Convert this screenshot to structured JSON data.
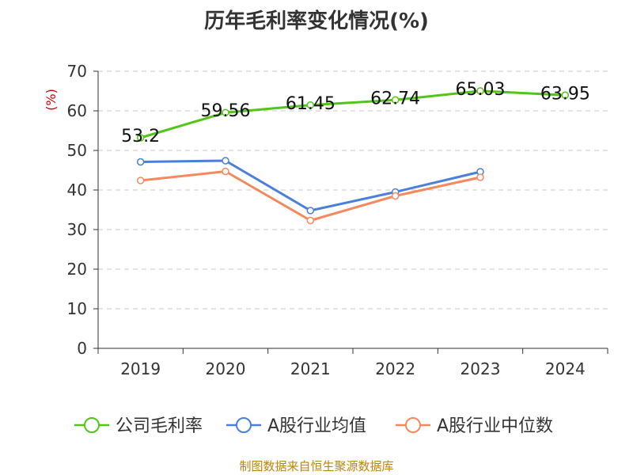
{
  "title": "历年毛利率变化情况(%)",
  "source": "制图数据来自恒生聚源数据库",
  "chart_data": {
    "type": "line",
    "title": "历年毛利率变化情况(%)",
    "ylabel": "(%)",
    "xlabel": "",
    "ylim": [
      0,
      70
    ],
    "yticks": [
      0,
      10,
      20,
      30,
      40,
      50,
      60,
      70
    ],
    "categories": [
      "2019",
      "2020",
      "2021",
      "2022",
      "2023",
      "2024"
    ],
    "grid": true,
    "legend_position": "bottom",
    "series": [
      {
        "name": "公司毛利率",
        "color": "#52c41a",
        "values": [
          53.2,
          59.56,
          61.45,
          62.74,
          65.03,
          63.95
        ],
        "labels": [
          "53.2",
          "59.56",
          "61.45",
          "62.74",
          "65.03",
          "63.95"
        ]
      },
      {
        "name": "A股行业均值",
        "color": "#4a7fdb",
        "values": [
          47.1,
          47.4,
          34.8,
          39.5,
          44.6,
          null
        ]
      },
      {
        "name": "A股行业中位数",
        "color": "#f4895e",
        "values": [
          42.4,
          44.7,
          32.3,
          38.5,
          43.2,
          null
        ]
      }
    ]
  }
}
